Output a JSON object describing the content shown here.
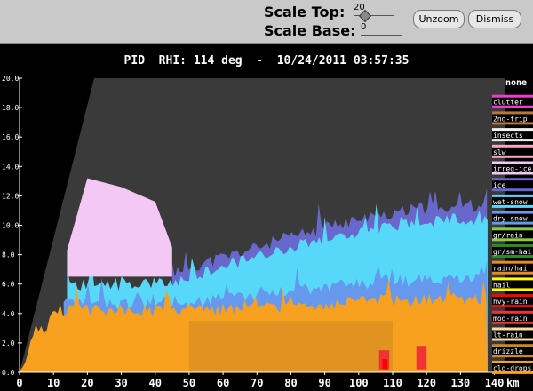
{
  "controls": {
    "scale_top_label": "Scale Top:",
    "scale_top_value": "20",
    "scale_base_label": "Scale Base:",
    "scale_base_value": "0",
    "unzoom_label": "Unzoom",
    "dismiss_label": "Dismiss"
  },
  "colors": {
    "background": "#000000",
    "no_echo": "#3a3a3a",
    "ground_wedge": "#000000",
    "toolbar": "#c9c9c9"
  },
  "chart_data": {
    "type": "heatmap",
    "title": "PID  RHI: 114 deg  -  10/24/2011 03:57:35",
    "xlabel": "km",
    "ylabel": "",
    "x_ticks": [
      "0",
      "10",
      "20",
      "30",
      "40",
      "50",
      "60",
      "70",
      "80",
      "90",
      "100",
      "110",
      "120",
      "130",
      "140"
    ],
    "y_ticks": [
      "0.0",
      "2.0",
      "4.0",
      "6.0",
      "8.0",
      "10.0",
      "12.0",
      "14.0",
      "16.0",
      "18.0",
      "20.0"
    ],
    "xlim": [
      0,
      143
    ],
    "ylim": [
      0,
      20
    ],
    "legend_position": "right",
    "legend": [
      {
        "label": "none",
        "color": "#000000"
      },
      {
        "label": "clutter",
        "color": "#ee3bd0"
      },
      {
        "label": "2nd-trip",
        "color": "#b8763a"
      },
      {
        "label": "insects",
        "color": "#f0f0f0"
      },
      {
        "label": "slw",
        "color": "#f4a8c4"
      },
      {
        "label": "irreg-ice",
        "color": "#f4c8f4"
      },
      {
        "label": "ice",
        "color": "#6868cc"
      },
      {
        "label": "wet-snow",
        "color": "#58d8f8"
      },
      {
        "label": "dry-snow",
        "color": "#6698ee"
      },
      {
        "label": "gr/rain",
        "color": "#88cc44"
      },
      {
        "label": "gr/sm-hai",
        "color": "#2a8a2a"
      },
      {
        "label": "rain/hai",
        "color": "#ee8822"
      },
      {
        "label": "hail",
        "color": "#ffff00"
      },
      {
        "label": "hvy-rain",
        "color": "#ff0000"
      },
      {
        "label": "mod-rain",
        "color": "#ee3333"
      },
      {
        "label": "lt-rain",
        "color": "#ffd8a8"
      },
      {
        "label": "drizzle",
        "color": "#cc8822"
      },
      {
        "label": "cld-drops",
        "color": "#f8a020"
      }
    ],
    "regions": {
      "ground_wedge_top_km_at_x": [
        [
          0,
          0
        ],
        [
          22,
          20
        ]
      ],
      "cld_drops_top": [
        [
          0,
          0.3
        ],
        [
          5,
          2.5
        ],
        [
          12,
          4.2
        ],
        [
          50,
          4.2
        ],
        [
          80,
          4.5
        ],
        [
          100,
          4.8
        ],
        [
          130,
          5.0
        ],
        [
          138,
          5.0
        ]
      ],
      "dry_snow_top": [
        [
          13,
          4.6
        ],
        [
          50,
          4.8
        ],
        [
          80,
          5.6
        ],
        [
          110,
          6.2
        ],
        [
          138,
          6.5
        ]
      ],
      "wet_snow_top": [
        [
          14,
          6.0
        ],
        [
          45,
          6.0
        ],
        [
          60,
          7.2
        ],
        [
          80,
          8.6
        ],
        [
          100,
          9.5
        ],
        [
          120,
          10.3
        ],
        [
          138,
          10.5
        ]
      ],
      "ice_top": [
        [
          45,
          6.8
        ],
        [
          60,
          7.8
        ],
        [
          80,
          9.2
        ],
        [
          100,
          10.4
        ],
        [
          120,
          11.2
        ],
        [
          138,
          11.4
        ]
      ],
      "irreg_ice_region": [
        [
          14,
          8.3
        ],
        [
          20,
          13.2
        ],
        [
          30,
          12.6
        ],
        [
          40,
          11.6
        ],
        [
          45,
          8.5
        ],
        [
          45,
          6.5
        ],
        [
          14,
          6.5
        ]
      ],
      "mod_rain_patches": [
        [
          106,
          0.2,
          109,
          1.5
        ],
        [
          117,
          0.2,
          120,
          1.8
        ]
      ],
      "hvy_rain_patches": [
        [
          107,
          0.2,
          108.5,
          0.9
        ]
      ],
      "drizzle_region": [
        [
          50,
          0
        ],
        [
          110,
          0
        ],
        [
          110,
          3.5
        ],
        [
          50,
          3.5
        ]
      ]
    }
  }
}
